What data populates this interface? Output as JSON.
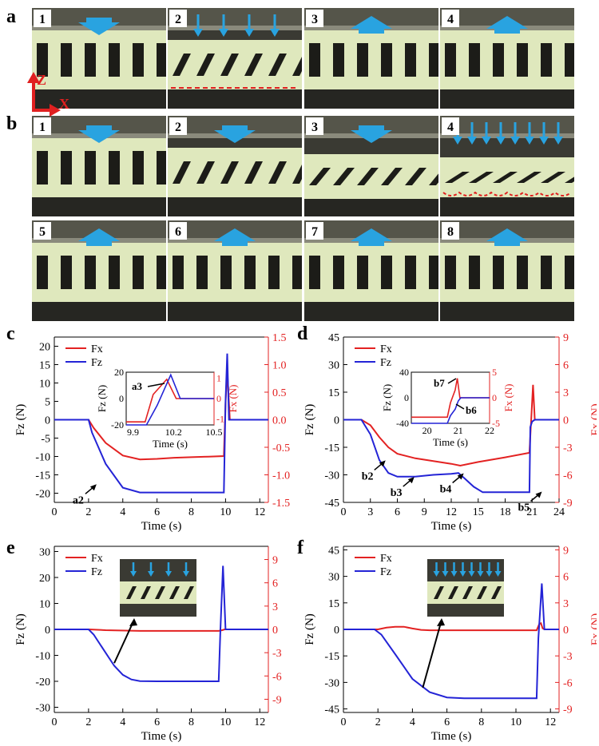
{
  "figure": {
    "panel_labels": {
      "a": "a",
      "b": "b",
      "c": "c",
      "d": "d",
      "e": "e",
      "f": "f"
    },
    "axis_label_z": "Z",
    "axis_label_x": "X",
    "colors": {
      "arrow": "#29a3e0",
      "gel": "#dfe8bd",
      "dark": "#222",
      "fx_line": "#e32222",
      "fz_line": "#2424d6",
      "dash": "#e02020"
    },
    "frames_a": [
      {
        "num": "1",
        "state": "upright",
        "arrow": "down-big"
      },
      {
        "num": "2",
        "state": "tilted",
        "arrow": "down-multi4",
        "dashed": "line"
      },
      {
        "num": "3",
        "state": "upright",
        "arrow": "up"
      },
      {
        "num": "4",
        "state": "upright",
        "arrow": "up"
      }
    ],
    "frames_b": [
      {
        "num": "1",
        "state": "upright",
        "arrow": "down-big"
      },
      {
        "num": "2",
        "state": "tilted",
        "arrow": "down-big"
      },
      {
        "num": "3",
        "state": "tilted-low",
        "arrow": "down-big"
      },
      {
        "num": "4",
        "state": "tilted-flat",
        "arrow": "down-multi8",
        "dashed": "wave"
      },
      {
        "num": "5",
        "state": "upright",
        "arrow": "up"
      },
      {
        "num": "6",
        "state": "upright",
        "arrow": "up"
      },
      {
        "num": "7",
        "state": "upright",
        "arrow": "up"
      },
      {
        "num": "8",
        "state": "upright",
        "arrow": "up"
      }
    ]
  },
  "chart_data": [
    {
      "id": "c",
      "type": "line",
      "xlabel": "Time (s)",
      "ylabel": "Fz (N)",
      "y2label": "Fx (N)",
      "xlim": [
        0,
        12.5
      ],
      "ylim": [
        -22.5,
        22.5
      ],
      "y2lim": [
        -1.5,
        1.5
      ],
      "xticks": [
        0,
        2,
        4,
        6,
        8,
        10,
        12
      ],
      "yticks": [
        -20,
        -15,
        -10,
        -5,
        0,
        5,
        10,
        15,
        20
      ],
      "y2ticks": [
        "-1.5",
        "-1.0",
        "-0.5",
        "0.0",
        "0.5",
        "1.0",
        "1.5"
      ],
      "y2tick_values": [
        -1.5,
        -1.0,
        -0.5,
        0.0,
        0.5,
        1.0,
        1.5
      ],
      "legend": [
        "Fx",
        "Fz"
      ],
      "series": [
        {
          "name": "Fx",
          "axis": "y2",
          "x": [
            0,
            2,
            2.3,
            3,
            4,
            5,
            6,
            7,
            8,
            9,
            9.9,
            10.0,
            10.1,
            10.15,
            10.25,
            10.4,
            12.5
          ],
          "y": [
            0,
            0,
            -0.15,
            -0.42,
            -0.65,
            -0.72,
            -0.71,
            -0.69,
            -0.68,
            -0.67,
            -0.66,
            0.3,
            0.9,
            0.6,
            0,
            0,
            0
          ]
        },
        {
          "name": "Fz",
          "axis": "y",
          "x": [
            0,
            2,
            2.2,
            3,
            4,
            5,
            6,
            7,
            8,
            9,
            9.9,
            10.0,
            10.1,
            10.2,
            10.3,
            12.5
          ],
          "y": [
            0,
            0,
            -3.5,
            -12,
            -18.5,
            -19.8,
            -19.8,
            -19.8,
            -19.8,
            -19.8,
            -19.8,
            5,
            18,
            0,
            0,
            0
          ]
        }
      ],
      "annotations": [
        {
          "text": "a2",
          "x": 2.0,
          "y": -18
        }
      ],
      "inset": {
        "xlim": [
          9.85,
          10.5
        ],
        "ylim": [
          -20,
          20
        ],
        "y2lim": [
          -1.3,
          1.3
        ],
        "xticks": [
          "9.9",
          "10.2",
          "10.5"
        ],
        "xtick_values": [
          9.9,
          10.2,
          10.5
        ],
        "yticks": [
          "-20",
          "0",
          "20"
        ],
        "ytick_values": [
          -20,
          0,
          20
        ],
        "y2ticks": [
          "-1",
          "0",
          "1"
        ],
        "y2tick_values": [
          -1,
          0,
          1
        ],
        "xlabel": "Time (s)",
        "ylabel": "Fz (N)",
        "y2label": "Fx (N)",
        "annotation": "a3",
        "series": [
          {
            "name": "Fx",
            "axis": "y2",
            "x": [
              9.85,
              9.99,
              10.05,
              10.15,
              10.22,
              10.3,
              10.5
            ],
            "y": [
              -1.15,
              -1.15,
              0.2,
              0.95,
              0,
              0,
              0
            ]
          },
          {
            "name": "Fz",
            "axis": "y",
            "x": [
              9.85,
              10.0,
              10.08,
              10.18,
              10.25,
              10.3,
              10.5
            ],
            "y": [
              -20,
              -20,
              -5,
              18,
              0,
              0,
              0
            ]
          }
        ]
      }
    },
    {
      "id": "d",
      "type": "line",
      "xlabel": "Time (s)",
      "ylabel": "Fz (N)",
      "y2label": "Fx (N)",
      "xlim": [
        0,
        24
      ],
      "ylim": [
        -45,
        45
      ],
      "y2lim": [
        -9,
        9
      ],
      "xticks": [
        0,
        3,
        6,
        9,
        12,
        15,
        18,
        21,
        24
      ],
      "yticks": [
        -45,
        -30,
        -15,
        0,
        15,
        30,
        45
      ],
      "y2ticks": [
        "-9",
        "-6",
        "-3",
        "0",
        "3",
        "6",
        "9"
      ],
      "y2tick_values": [
        -9,
        -6,
        -3,
        0,
        3,
        6,
        9
      ],
      "legend": [
        "Fx",
        "Fz"
      ],
      "series": [
        {
          "name": "Fx",
          "axis": "y2",
          "x": [
            0,
            2,
            3,
            4,
            5,
            6,
            8,
            10,
            12,
            13,
            15,
            18,
            20.7,
            20.9,
            21.1,
            21.3,
            21.6,
            24
          ],
          "y": [
            0,
            0,
            -0.6,
            -1.9,
            -3,
            -3.7,
            -4.2,
            -4.5,
            -4.8,
            -5,
            -4.6,
            -4.1,
            -3.6,
            0,
            3.8,
            0,
            0,
            0
          ]
        },
        {
          "name": "Fz",
          "axis": "y",
          "x": [
            0,
            2,
            3,
            4,
            5,
            6,
            8,
            10,
            12,
            12.8,
            13.5,
            14.5,
            15.5,
            17,
            20.7,
            20.8,
            21.0,
            21.3,
            21.6,
            24
          ],
          "y": [
            0,
            0,
            -8,
            -22,
            -29,
            -31,
            -31,
            -30,
            -29.5,
            -29,
            -32,
            -36.5,
            -39.5,
            -39.5,
            -39.5,
            -4,
            -1,
            0,
            0,
            0
          ]
        }
      ],
      "annotations": [
        {
          "text": "b2",
          "x": 3.8,
          "y": -23
        },
        {
          "text": "b3",
          "x": 7.0,
          "y": -32
        },
        {
          "text": "b4",
          "x": 12.5,
          "y": -30
        },
        {
          "text": "b5",
          "x": 21.2,
          "y": -40
        }
      ],
      "inset": {
        "xlim": [
          19.5,
          22
        ],
        "ylim": [
          -40,
          40
        ],
        "y2lim": [
          -5,
          5
        ],
        "xticks": [
          "20",
          "21",
          "22"
        ],
        "xtick_values": [
          20,
          21,
          22
        ],
        "yticks": [
          "-40",
          "0",
          "40"
        ],
        "ytick_values": [
          -40,
          0,
          40
        ],
        "y2ticks": [
          "-5",
          "0",
          "5"
        ],
        "y2tick_values": [
          -5,
          0,
          5
        ],
        "xlabel": "Time (s)",
        "ylabel": "Fz (N)",
        "y2label": "Fx (N)",
        "annotations": [
          "b7",
          "b6"
        ],
        "series": [
          {
            "name": "Fx",
            "axis": "y2",
            "x": [
              19.5,
              20.65,
              20.75,
              20.9,
              20.97,
              21.05,
              22
            ],
            "y": [
              -3.8,
              -3.8,
              -1,
              1.5,
              3.8,
              0,
              0
            ]
          },
          {
            "name": "Fz",
            "axis": "y",
            "x": [
              19.5,
              20.65,
              20.75,
              20.9,
              21.0,
              21.08,
              22
            ],
            "y": [
              -40,
              -40,
              -28,
              -18,
              -5,
              0,
              0
            ]
          }
        ]
      }
    },
    {
      "id": "e",
      "type": "line",
      "xlabel": "Time (s)",
      "ylabel": "Fz (N)",
      "y2label": "Fx (N)",
      "xlim": [
        0,
        12.5
      ],
      "ylim": [
        -32,
        32
      ],
      "y2lim": [
        -10.7,
        10.7
      ],
      "xticks": [
        0,
        2,
        4,
        6,
        8,
        10,
        12
      ],
      "yticks": [
        -30,
        -20,
        -10,
        0,
        10,
        20,
        30
      ],
      "y2ticks": [
        "-9",
        "-6",
        "-3",
        "0",
        "3",
        "6",
        "9"
      ],
      "y2tick_values": [
        -9,
        -6,
        -3,
        0,
        3,
        6,
        9
      ],
      "legend": [
        "Fx",
        "Fz"
      ],
      "series": [
        {
          "name": "Fx",
          "axis": "y2",
          "x": [
            0,
            2,
            3,
            5,
            9.6,
            9.8,
            9.95,
            10.1,
            12.5
          ],
          "y": [
            0,
            0,
            -0.1,
            -0.2,
            -0.2,
            -0.1,
            0,
            0,
            0
          ]
        },
        {
          "name": "Fz",
          "axis": "y",
          "x": [
            0,
            2,
            2.3,
            3,
            3.5,
            4,
            4.5,
            5,
            6,
            9.6,
            9.7,
            9.85,
            10.0,
            12.5
          ],
          "y": [
            0,
            0,
            -2,
            -9,
            -14,
            -17.5,
            -19.3,
            -19.9,
            -20,
            -20,
            0,
            24.5,
            0,
            0
          ]
        }
      ]
    },
    {
      "id": "f",
      "type": "line",
      "xlabel": "Time (s)",
      "ylabel": "Fz (N)",
      "y2label": "Fx (N)",
      "xlim": [
        0,
        12.5
      ],
      "ylim": [
        -47,
        47
      ],
      "y2lim": [
        -9.4,
        9.4
      ],
      "xticks": [
        0,
        2,
        4,
        6,
        8,
        10,
        12
      ],
      "yticks": [
        -45,
        -30,
        -15,
        0,
        15,
        30,
        45
      ],
      "y2ticks": [
        "-9",
        "-6",
        "-3",
        "0",
        "3",
        "6",
        "9"
      ],
      "y2tick_values": [
        -9,
        -6,
        -3,
        0,
        3,
        6,
        9
      ],
      "legend": [
        "Fx",
        "Fz"
      ],
      "series": [
        {
          "name": "Fx",
          "axis": "y2",
          "x": [
            0,
            2,
            2.5,
            3,
            3.5,
            4,
            4.5,
            5,
            6,
            11.2,
            11.35,
            11.45,
            11.55,
            11.7,
            12.5
          ],
          "y": [
            0,
            0,
            0.2,
            0.3,
            0.3,
            0.1,
            -0.05,
            -0.1,
            -0.1,
            -0.1,
            0.6,
            0.7,
            0.1,
            0,
            0
          ]
        },
        {
          "name": "Fz",
          "axis": "y",
          "x": [
            0,
            1.8,
            2.2,
            3,
            4,
            5,
            6,
            7,
            11.2,
            11.3,
            11.5,
            11.65,
            11.8,
            12.5
          ],
          "y": [
            0,
            0,
            -3,
            -14,
            -28,
            -35.5,
            -38.5,
            -39,
            -39,
            -5,
            26,
            0,
            0,
            0
          ]
        }
      ]
    }
  ]
}
